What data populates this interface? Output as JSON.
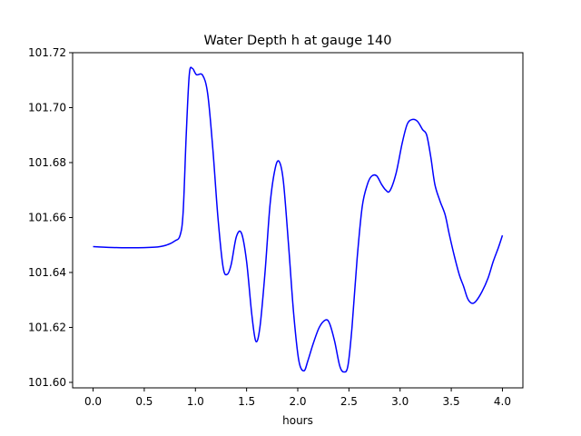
{
  "chart_data": {
    "type": "line",
    "title": "Water Depth h at gauge 140",
    "xlabel": "hours",
    "ylabel": "",
    "xlim": [
      -0.2,
      4.2
    ],
    "ylim": [
      101.598,
      101.72
    ],
    "grid": false,
    "x_ticks": [
      {
        "value": 0.0,
        "label": "0.0"
      },
      {
        "value": 0.5,
        "label": "0.5"
      },
      {
        "value": 1.0,
        "label": "1.0"
      },
      {
        "value": 1.5,
        "label": "1.5"
      },
      {
        "value": 2.0,
        "label": "2.0"
      },
      {
        "value": 2.5,
        "label": "2.5"
      },
      {
        "value": 3.0,
        "label": "3.0"
      },
      {
        "value": 3.5,
        "label": "3.5"
      },
      {
        "value": 4.0,
        "label": "4.0"
      }
    ],
    "y_ticks": [
      {
        "value": 101.6,
        "label": "101.60"
      },
      {
        "value": 101.62,
        "label": "101.62"
      },
      {
        "value": 101.64,
        "label": "101.64"
      },
      {
        "value": 101.66,
        "label": "101.66"
      },
      {
        "value": 101.68,
        "label": "101.68"
      },
      {
        "value": 101.7,
        "label": "101.70"
      },
      {
        "value": 101.72,
        "label": "101.72"
      }
    ],
    "series": [
      {
        "name": "",
        "color": "#0000ff",
        "points": [
          [
            0.0,
            101.6494
          ],
          [
            0.3,
            101.649
          ],
          [
            0.6,
            101.6492
          ],
          [
            0.72,
            101.65
          ],
          [
            0.8,
            101.6515
          ],
          [
            0.85,
            101.6535
          ],
          [
            0.88,
            101.662
          ],
          [
            0.91,
            101.69
          ],
          [
            0.94,
            101.712
          ],
          [
            0.97,
            101.7143
          ],
          [
            1.01,
            101.712
          ],
          [
            1.07,
            101.7118
          ],
          [
            1.12,
            101.705
          ],
          [
            1.17,
            101.685
          ],
          [
            1.22,
            101.66
          ],
          [
            1.27,
            101.642
          ],
          [
            1.31,
            101.6393
          ],
          [
            1.35,
            101.643
          ],
          [
            1.4,
            101.653
          ],
          [
            1.45,
            101.6543
          ],
          [
            1.5,
            101.644
          ],
          [
            1.55,
            101.625
          ],
          [
            1.59,
            101.615
          ],
          [
            1.63,
            101.62
          ],
          [
            1.68,
            101.64
          ],
          [
            1.73,
            101.665
          ],
          [
            1.78,
            101.678
          ],
          [
            1.82,
            101.6803
          ],
          [
            1.86,
            101.673
          ],
          [
            1.91,
            101.65
          ],
          [
            1.96,
            101.625
          ],
          [
            2.01,
            101.608
          ],
          [
            2.06,
            101.6042
          ],
          [
            2.1,
            101.608
          ],
          [
            2.15,
            101.614
          ],
          [
            2.21,
            101.62
          ],
          [
            2.27,
            101.6227
          ],
          [
            2.31,
            101.6215
          ],
          [
            2.36,
            101.615
          ],
          [
            2.41,
            101.606
          ],
          [
            2.45,
            101.6038
          ],
          [
            2.49,
            101.606
          ],
          [
            2.53,
            101.62
          ],
          [
            2.58,
            101.645
          ],
          [
            2.63,
            101.664
          ],
          [
            2.68,
            101.672
          ],
          [
            2.72,
            101.675
          ],
          [
            2.77,
            101.6752
          ],
          [
            2.82,
            101.672
          ],
          [
            2.86,
            101.67
          ],
          [
            2.9,
            101.6697
          ],
          [
            2.96,
            101.676
          ],
          [
            3.02,
            101.687
          ],
          [
            3.07,
            101.694
          ],
          [
            3.12,
            101.6957
          ],
          [
            3.17,
            101.695
          ],
          [
            3.22,
            101.692
          ],
          [
            3.26,
            101.69
          ],
          [
            3.3,
            101.682
          ],
          [
            3.34,
            101.672
          ],
          [
            3.39,
            101.666
          ],
          [
            3.44,
            101.661
          ],
          [
            3.48,
            101.654
          ],
          [
            3.53,
            101.646
          ],
          [
            3.58,
            101.639
          ],
          [
            3.62,
            101.635
          ],
          [
            3.66,
            101.6305
          ],
          [
            3.7,
            101.6288
          ],
          [
            3.74,
            101.6295
          ],
          [
            3.8,
            101.633
          ],
          [
            3.86,
            101.638
          ],
          [
            3.91,
            101.644
          ],
          [
            3.96,
            101.649
          ],
          [
            4.0,
            101.6535
          ]
        ]
      }
    ]
  }
}
